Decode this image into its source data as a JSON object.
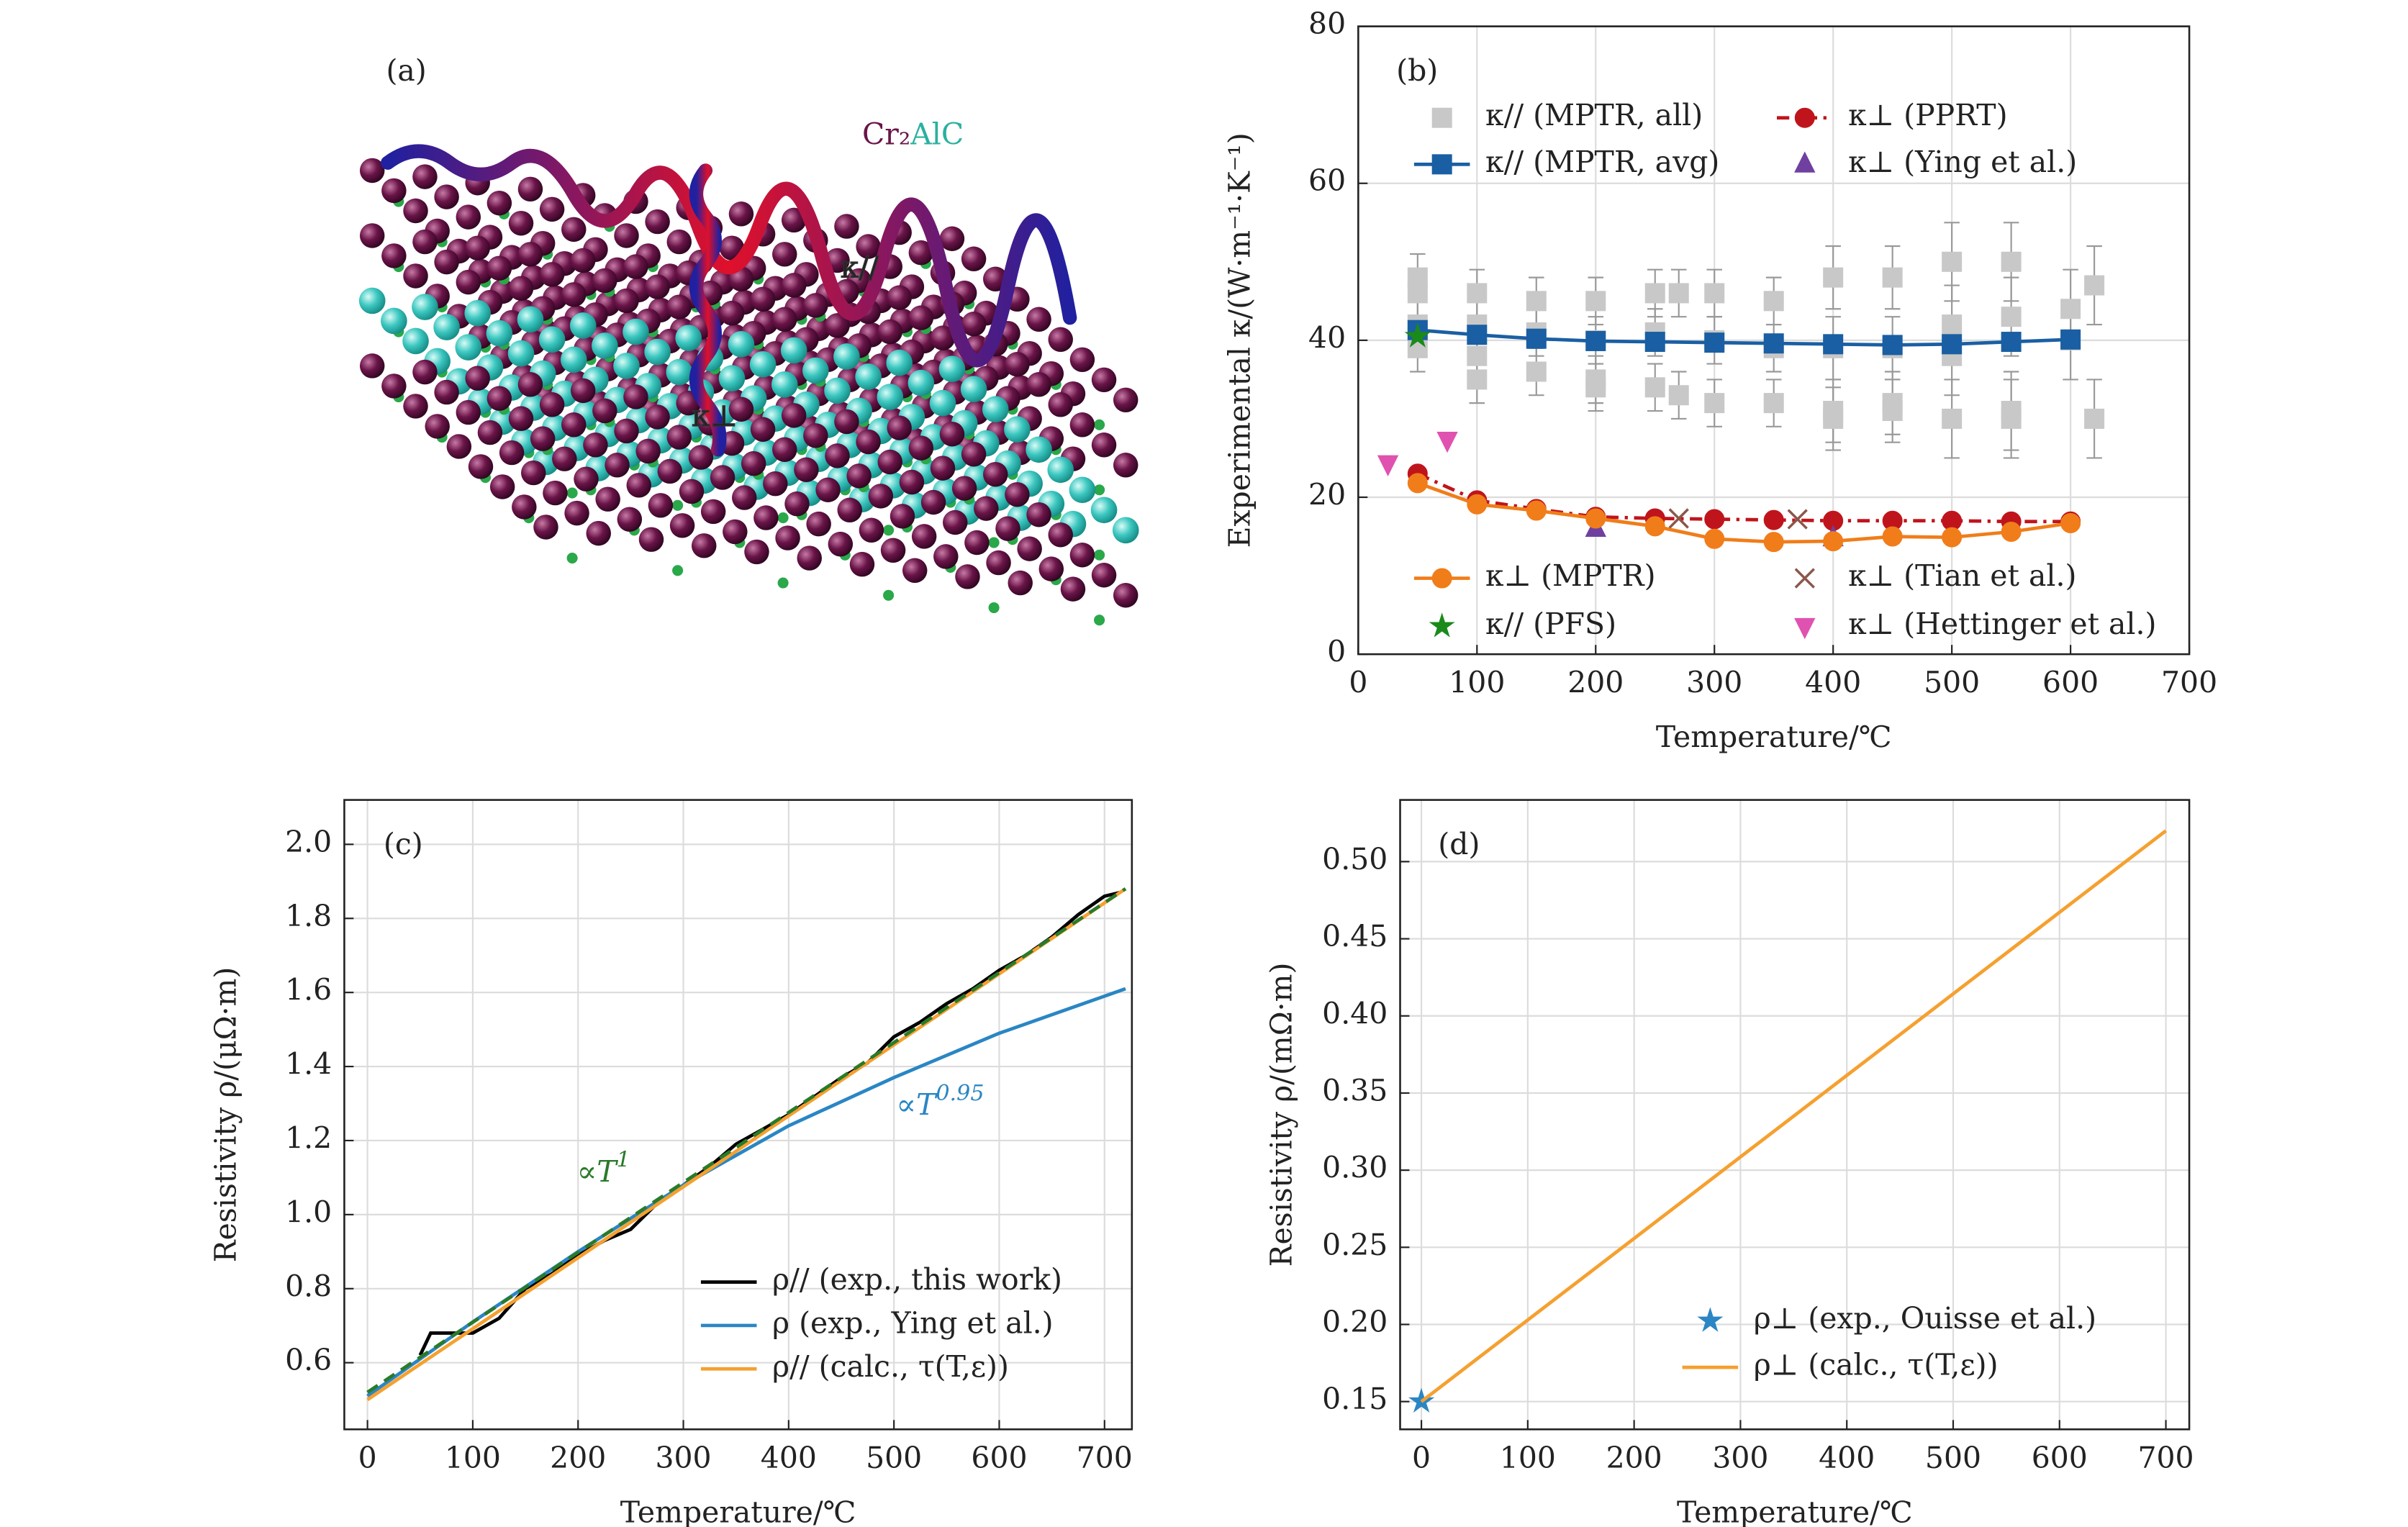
{
  "panel_a": {
    "label": "(a)",
    "formula_metal": "Cr₂",
    "formula_rest": "AlC",
    "kappa_parallel": "κ//",
    "kappa_perp": "κ⊥"
  },
  "chart_data": [
    {
      "type": "line",
      "label": "(b)",
      "xlabel": "Temperature/℃",
      "ylabel": "Experimental κ/(W·m⁻¹·K⁻¹)",
      "xlim": [
        0,
        700
      ],
      "ylim": [
        0,
        80
      ],
      "xticks": [
        0,
        100,
        200,
        300,
        400,
        500,
        600,
        700
      ],
      "yticks": [
        0,
        20,
        40,
        60,
        80
      ],
      "grid": true,
      "series": [
        {
          "name": "κ// (MPTR, all)",
          "color": "#c8c8c8",
          "marker": "square",
          "linestyle": "none",
          "x": [
            50,
            50,
            50,
            50,
            100,
            100,
            100,
            100,
            150,
            150,
            150,
            200,
            200,
            200,
            200,
            250,
            250,
            250,
            270,
            270,
            300,
            300,
            300,
            350,
            350,
            350,
            400,
            400,
            400,
            400,
            450,
            450,
            450,
            450,
            500,
            500,
            500,
            500,
            550,
            550,
            550,
            550,
            600,
            600,
            620,
            620
          ],
          "values": [
            48,
            46,
            42,
            39,
            46,
            42,
            38,
            35,
            45,
            41,
            36,
            45,
            40,
            35,
            34,
            46,
            41,
            34,
            46,
            33,
            46,
            40,
            32,
            45,
            39,
            32,
            48,
            39,
            31,
            30,
            48,
            39,
            32,
            31,
            50,
            42,
            38,
            30,
            50,
            43,
            31,
            30,
            44,
            40,
            47,
            30
          ],
          "errors": [
            3,
            3,
            3,
            3,
            3,
            3,
            3,
            3,
            3,
            3,
            3,
            3,
            3,
            3,
            3,
            3,
            3,
            3,
            3,
            3,
            3,
            3,
            3,
            3,
            3,
            3,
            4,
            4,
            4,
            4,
            4,
            4,
            4,
            4,
            5,
            5,
            5,
            5,
            5,
            5,
            5,
            5,
            5,
            5,
            5,
            5
          ]
        },
        {
          "name": "κ// (MPTR, avg)",
          "color": "#1a5fa3",
          "marker": "square",
          "linestyle": "solid",
          "x": [
            50,
            100,
            150,
            200,
            250,
            300,
            350,
            400,
            450,
            500,
            550,
            600
          ],
          "values": [
            41.3,
            40.7,
            40.2,
            39.9,
            39.8,
            39.7,
            39.6,
            39.5,
            39.4,
            39.5,
            39.8,
            40.1
          ]
        },
        {
          "name": "κ⊥ (PPRT)",
          "color": "#c0141c",
          "marker": "circle",
          "linestyle": "dashdot",
          "x": [
            50,
            100,
            150,
            200,
            250,
            300,
            350,
            400,
            450,
            500,
            550,
            600
          ],
          "values": [
            23,
            19.6,
            18.5,
            17.5,
            17.3,
            17.2,
            17.1,
            17,
            17,
            17,
            16.9,
            16.9
          ]
        },
        {
          "name": "κ⊥ (Ying et al.)",
          "color": "#7040a0",
          "marker": "triangle-up",
          "linestyle": "none",
          "x": [
            200,
            400
          ],
          "values": [
            16,
            14.8
          ]
        },
        {
          "name": "κ⊥ (MPTR)",
          "color": "#f07d1a",
          "marker": "circle",
          "linestyle": "solid",
          "x": [
            50,
            100,
            150,
            200,
            250,
            300,
            350,
            400,
            450,
            500,
            550,
            600
          ],
          "values": [
            21.8,
            19.1,
            18.3,
            17.3,
            16.3,
            14.7,
            14.3,
            14.4,
            15,
            14.9,
            15.6,
            16.7
          ]
        },
        {
          "name": "κ// (PFS)",
          "color": "#1a8a1a",
          "marker": "star",
          "linestyle": "none",
          "x": [
            50
          ],
          "values": [
            40.5
          ]
        },
        {
          "name": "κ⊥ (Tian et al.)",
          "color": "#8c564b",
          "marker": "x",
          "linestyle": "none",
          "x": [
            270,
            370
          ],
          "values": [
            17.3,
            17.2
          ]
        },
        {
          "name": "κ⊥ (Hettinger et al.)",
          "color": "#e052b0",
          "marker": "triangle-down",
          "linestyle": "none",
          "x": [
            25,
            75
          ],
          "values": [
            24.3,
            27.3
          ]
        }
      ]
    },
    {
      "type": "line",
      "label": "(c)",
      "xlabel": "Temperature/℃",
      "ylabel": "Resistivity ρ/(μΩ·m)",
      "xlim": [
        -22,
        726
      ],
      "ylim": [
        0.42,
        2.12
      ],
      "xticks": [
        0,
        100,
        200,
        300,
        400,
        500,
        600,
        700
      ],
      "yticks": [
        0.6,
        0.8,
        {
          "value": 1,
          "label": "1.0"
        },
        1.2,
        1.4,
        1.6,
        1.8,
        {
          "value": 2,
          "label": "2.0"
        }
      ],
      "grid": true,
      "annotations": [
        {
          "text": "∝T",
          "sup": "1",
          "color": "#2a7a2a"
        },
        {
          "text": "∝T",
          "sup": "0.95",
          "color": "#2a86c4"
        }
      ],
      "series": [
        {
          "name": "ρ// (exp., this work)",
          "color": "#000000",
          "marker": "none",
          "linestyle": "solid",
          "x": [
            50,
            60,
            75,
            100,
            125,
            150,
            175,
            200,
            225,
            250,
            275,
            300,
            325,
            350,
            375,
            400,
            425,
            450,
            475,
            500,
            525,
            550,
            575,
            600,
            625,
            650,
            675,
            700,
            715
          ],
          "values": [
            0.62,
            0.68,
            0.68,
            0.68,
            0.72,
            0.8,
            0.84,
            0.89,
            0.93,
            0.96,
            1.03,
            1.08,
            1.13,
            1.19,
            1.23,
            1.27,
            1.32,
            1.37,
            1.41,
            1.48,
            1.52,
            1.57,
            1.61,
            1.66,
            1.7,
            1.75,
            1.81,
            1.86,
            1.87
          ]
        },
        {
          "name": "ρ (exp., Ying et al.)",
          "color": "#2a86c4",
          "marker": "none",
          "linestyle": "solid",
          "x": [
            0,
            100,
            200,
            300,
            400,
            500,
            600,
            720
          ],
          "values": [
            0.51,
            0.71,
            0.9,
            1.08,
            1.24,
            1.37,
            1.49,
            1.61
          ]
        },
        {
          "name": "ρ// (calc., τ(T,ε))",
          "color": "#f5a030",
          "marker": "none",
          "linestyle": "solid",
          "x": [
            0,
            720
          ],
          "values": [
            0.5,
            1.88
          ]
        },
        {
          "color": "#2a7a2a",
          "marker": "none",
          "linestyle": "dashed",
          "x": [
            0,
            720
          ],
          "values": [
            0.52,
            1.88
          ]
        }
      ]
    },
    {
      "type": "line",
      "label": "(d)",
      "xlabel": "Temperature/℃",
      "ylabel": "Resistivity ρ/(mΩ·m)",
      "xlim": [
        -20,
        722
      ],
      "ylim": [
        0.132,
        0.54
      ],
      "xticks": [
        0,
        100,
        200,
        300,
        400,
        500,
        600,
        700
      ],
      "yticks": [
        0.15,
        {
          "value": 0.2,
          "label": "0.20"
        },
        0.25,
        {
          "value": 0.3,
          "label": "0.30"
        },
        0.35,
        {
          "value": 0.4,
          "label": "0.40"
        },
        0.45,
        {
          "value": 0.5,
          "label": "0.50"
        }
      ],
      "grid": true,
      "series": [
        {
          "name": "ρ⊥ (exp., Ouisse et al.)",
          "color": "#2a86c4",
          "marker": "star",
          "linestyle": "none",
          "x": [
            0
          ],
          "values": [
            0.15
          ]
        },
        {
          "name": "ρ⊥ (calc., τ(T,ε))",
          "color": "#f5a030",
          "marker": "none",
          "linestyle": "solid",
          "x": [
            0,
            700
          ],
          "values": [
            0.15,
            0.52
          ]
        }
      ]
    }
  ]
}
